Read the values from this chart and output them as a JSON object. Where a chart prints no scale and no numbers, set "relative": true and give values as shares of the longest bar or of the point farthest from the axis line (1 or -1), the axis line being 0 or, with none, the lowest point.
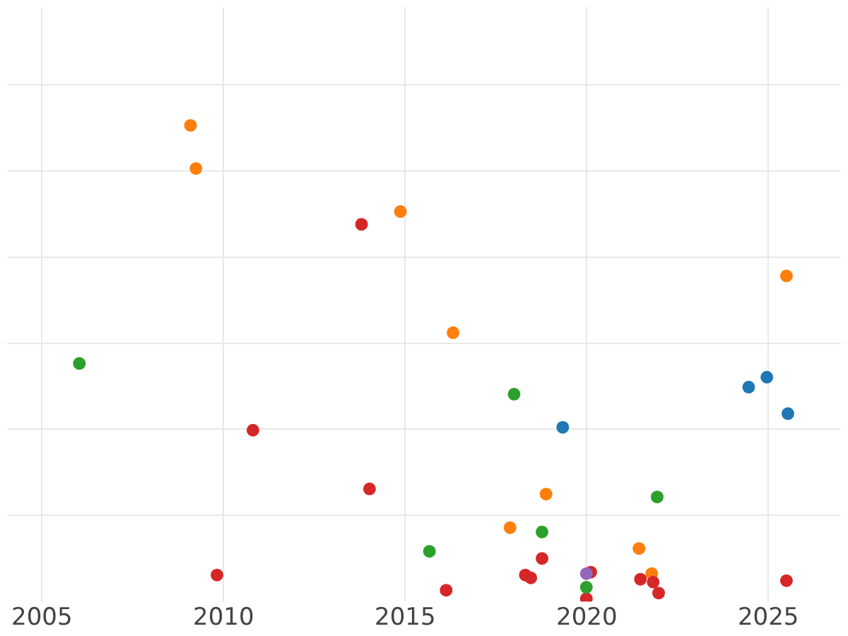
{
  "chart_data": {
    "type": "scatter",
    "relative": true,
    "xlim": [
      2004.04,
      2027.0
    ],
    "xticks": [
      2005,
      2010,
      2015,
      2020,
      2025
    ],
    "grid": true,
    "legend": false,
    "marker": "circle",
    "tick_labels": "x",
    "series": [
      {
        "color": "#ff7f0e",
        "x": [
          2009.09,
          2009.24,
          2014.87,
          2016.32,
          2025.5,
          2018.88,
          2017.89,
          2021.44,
          2021.79
        ],
        "values": [
          1.0,
          0.909,
          0.818,
          0.562,
          0.682,
          0.221,
          0.15,
          0.106,
          0.053
        ]
      },
      {
        "color": "#d62728",
        "x": [
          2013.8,
          2010.81,
          2014.02,
          2009.82,
          2016.13,
          2018.31,
          2018.46,
          2018.77,
          2020.11,
          2019.99,
          2021.48,
          2021.83,
          2021.98,
          2025.5
        ],
        "values": [
          0.791,
          0.356,
          0.232,
          0.05,
          0.018,
          0.05,
          0.044,
          0.085,
          0.056,
          0.0,
          0.041,
          0.035,
          0.012,
          0.038
        ]
      },
      {
        "color": "#2ca02c",
        "x": [
          2006.03,
          2018.0,
          2021.94,
          2018.77,
          2015.67,
          2019.99
        ],
        "values": [
          0.497,
          0.432,
          0.215,
          0.141,
          0.1,
          0.024
        ]
      },
      {
        "color": "#1f77b4",
        "x": [
          2019.34,
          2024.46,
          2024.96,
          2025.54
        ],
        "values": [
          0.362,
          0.447,
          0.468,
          0.391
        ]
      },
      {
        "color": "#9467bd",
        "x": [
          2019.99
        ],
        "values": [
          0.053
        ]
      }
    ]
  }
}
